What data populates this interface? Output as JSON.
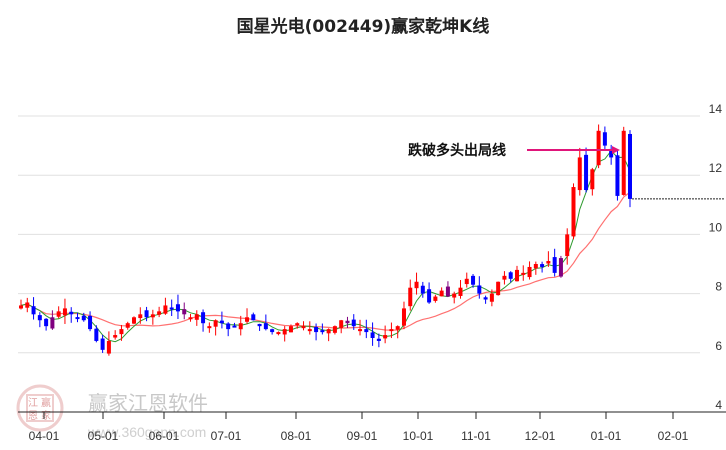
{
  "title": "国星光电(002449)赢家乾坤K线",
  "watermark": {
    "brand": "赢家江恩软件",
    "url": "www.360gann.com",
    "seal": [
      "江",
      "赢",
      "恩",
      "家"
    ]
  },
  "colors": {
    "up": "#ff0000",
    "down": "#0000ff",
    "special": "#800080",
    "ma_short": "#2e9a2e",
    "ma_long": "#ff4d4d",
    "breakout_line": "#e0157a",
    "grid": "#e0e0e0"
  },
  "chart_data": {
    "type": "candlestick",
    "title": "国星光电(002449)赢家乾坤K线",
    "xlabel": "",
    "ylabel": "",
    "ylim": [
      4,
      14.5
    ],
    "y_ticks": [
      4,
      6,
      8,
      10,
      12,
      14
    ],
    "x_ticks": [
      "04-01",
      "05-01",
      "06-01",
      "07-01",
      "08-01",
      "09-01",
      "10-01",
      "11-01",
      "12-01",
      "01-01",
      "02-01"
    ],
    "grid": true,
    "annotations": [
      {
        "text": "跌破多头出局线",
        "type": "arrow",
        "y_value": 12.85
      },
      {
        "text": "",
        "type": "dashed-level",
        "y_value": 11.2
      }
    ],
    "series": [
      {
        "name": "close",
        "values": [
          7.6,
          7.7,
          7.3,
          7.1,
          6.9,
          7.2,
          7.4,
          7.5,
          7.3,
          7.2,
          7.1,
          6.8,
          6.4,
          6.1,
          6.4,
          6.6,
          6.8,
          7.0,
          7.2,
          7.3,
          7.2,
          7.3,
          7.4,
          7.6,
          7.5,
          7.4,
          7.3,
          7.2,
          7.3,
          7.0,
          6.9,
          7.1,
          7.0,
          6.8,
          6.9,
          7.0,
          7.2,
          7.1,
          6.9,
          6.8,
          6.7,
          6.7,
          6.8,
          6.9,
          7.0,
          6.9,
          6.8,
          6.7,
          6.7,
          6.8,
          6.9,
          7.1,
          7.0,
          6.9,
          6.8,
          6.7,
          6.5,
          6.4,
          6.6,
          6.8,
          6.9,
          7.5,
          8.2,
          8.4,
          8.0,
          7.7,
          7.9,
          8.1,
          7.9,
          8.0,
          8.2,
          8.5,
          8.3,
          8.0,
          7.8,
          8.0,
          8.4,
          8.6,
          8.5,
          8.8,
          8.7,
          8.9,
          9.0,
          8.9,
          9.1,
          8.7,
          9.2,
          10.0,
          11.6,
          12.6,
          11.5,
          12.2,
          13.5,
          13.0,
          12.6,
          11.3,
          13.5,
          11.2
        ]
      },
      {
        "name": "MA-short (green)",
        "values": []
      },
      {
        "name": "MA-long (red)",
        "values": []
      }
    ]
  },
  "axis": {
    "y_labels": [
      "14",
      "12",
      "10",
      "8",
      "6",
      "4"
    ],
    "x_labels": [
      "04-01",
      "05-01",
      "06-01",
      "07-01",
      "08-01",
      "09-01",
      "10-01",
      "11-01",
      "12-01",
      "01-01",
      "02-01"
    ]
  },
  "annotation_label": "跌破多头出局线"
}
